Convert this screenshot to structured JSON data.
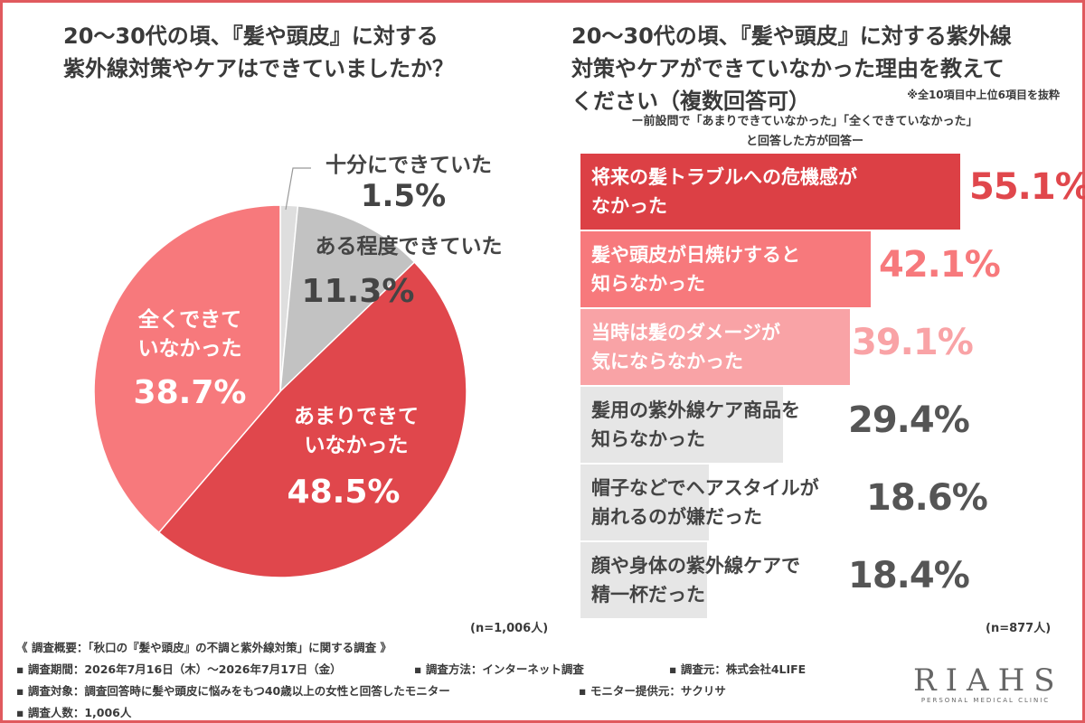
{
  "left": {
    "title_line1": "20〜30代の頃、『髪や頭皮』に対する",
    "title_line2": "紫外線対策やケアはできていましたか？",
    "n": "(n=1,006人)"
  },
  "right": {
    "title_line1": "20〜30代の頃、『髪や頭皮』に対する紫外線",
    "title_line2": "対策やケアができていなかった理由を教えて",
    "title_line3": "ください（複数回答可）",
    "note": "※全10項目中上位6項目を抜粋",
    "subq_line1": "ー前設問で「あまりできていなかった」「全くできていなかった」",
    "subq_line2": "と回答した方が回答ー",
    "n": "(n=877人)"
  },
  "chart_data": [
    {
      "type": "pie",
      "title": "20〜30代の頃、『髪や頭皮』に対する紫外線対策やケアはできていましたか？",
      "slices": [
        {
          "label": "十分にできていた",
          "value": 1.5,
          "display": "1.5%",
          "color": "#dedede"
        },
        {
          "label": "ある程度できていた",
          "value": 11.3,
          "display": "11.3%",
          "color": "#c2c2c2"
        },
        {
          "label": "あまりできていなかった",
          "value": 48.5,
          "display": "48.5%",
          "color": "#e0474c"
        },
        {
          "label": "全くできていなかった",
          "value": 38.7,
          "display": "38.7%",
          "color": "#f7797c"
        }
      ]
    },
    {
      "type": "bar",
      "orientation": "horizontal",
      "title": "20〜30代の頃、『髪や頭皮』に対する紫外線対策やケアができていなかった理由を教えてください（複数回答可）",
      "categories": [
        [
          "将来の髪トラブルへの危機感が",
          "なかった"
        ],
        [
          "髪や頭皮が日焼けすると",
          "知らなかった"
        ],
        [
          "当時は髪のダメージが",
          "気にならなかった"
        ],
        [
          "髪用の紫外線ケア商品を",
          "知らなかった"
        ],
        [
          "帽子などでヘアスタイルが",
          "崩れるのが嫌だった"
        ],
        [
          "顔や身体の紫外線ケアで",
          "精一杯だった"
        ]
      ],
      "values": [
        55.1,
        42.1,
        39.1,
        29.4,
        18.6,
        18.4
      ],
      "display": [
        "55.1%",
        "42.1%",
        "39.1%",
        "29.4%",
        "18.6%",
        "18.4%"
      ],
      "bar_colors": [
        "#dc4045",
        "#f7797c",
        "#f9a3a6",
        "#e6e6e6",
        "#e6e6e6",
        "#e6e6e6"
      ],
      "text_colors": [
        "#ffffff",
        "#ffffff",
        "#ffffff",
        "#444444",
        "#444444",
        "#444444"
      ],
      "value_colors": [
        "#e0474c",
        "#f7797c",
        "#f9a3a6",
        "#555555",
        "#555555",
        "#555555"
      ]
    }
  ],
  "footer": {
    "overview": "《 調査概要：「秋口の『髪や頭皮』の不調と紫外線対策」に関する調査 》",
    "period": "▪ 調査期間：2026年7月16日（木）〜2026年7月17日（金）",
    "method": "▪ 調査方法：インターネット調査",
    "source": "▪ 調査元：株式会社4LIFE",
    "target": "▪ 調査対象：調査回答時に髪や頭皮に悩みをもつ40歳以上の女性と回答したモニター",
    "provider": "▪ モニター提供元：サクリサ",
    "count": "▪ 調査人数：1,006人"
  },
  "logo": {
    "main": "RIAHS",
    "sub": "PERSONAL MEDICAL CLINIC"
  }
}
